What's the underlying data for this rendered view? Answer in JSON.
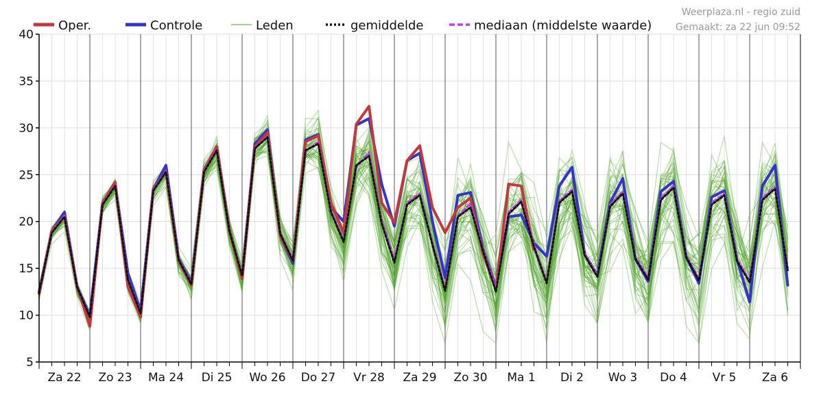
{
  "credit": {
    "line1": "Weerplaza.nl - regio zuid",
    "line2": "Gemaakt: za 22 jun 09:52"
  },
  "legend": [
    {
      "key": "oper",
      "label": "Oper.",
      "color": "#c0393b",
      "style": "solid-thick"
    },
    {
      "key": "controle",
      "label": "Controle",
      "color": "#3434c8",
      "style": "solid-thick"
    },
    {
      "key": "leden",
      "label": "Leden",
      "color": "#5aa832",
      "style": "thin"
    },
    {
      "key": "gemiddelde",
      "label": "gemiddelde",
      "color": "#111111",
      "style": "dotted"
    },
    {
      "key": "mediaan",
      "label": "mediaan (middelste waarde)",
      "color": "#c040e0",
      "style": "dashed"
    }
  ],
  "chart_data": {
    "type": "line",
    "title": "",
    "xlabel": "",
    "ylabel": "",
    "ylim": [
      5,
      40
    ],
    "yticks": [
      5,
      10,
      15,
      20,
      25,
      30,
      35,
      40
    ],
    "grid": true,
    "legend_position": "top",
    "days": [
      "Za 22",
      "Zo 23",
      "Ma 24",
      "Di 25",
      "Wo 26",
      "Do 27",
      "Vr 28",
      "Za 29",
      "Zo 30",
      "Ma 1",
      "Di 2",
      "Wo 3",
      "Do 4",
      "Vr 5",
      "Za 6"
    ],
    "samples_per_day": 4,
    "series": [
      {
        "name": "Oper.",
        "values": [
          12.3,
          19.0,
          20.6,
          13.0,
          8.8,
          22.0,
          24.2,
          13.0,
          9.8,
          23.5,
          25.3,
          15.8,
          13.2,
          25.5,
          28.0,
          19.0,
          13.9,
          28.0,
          29.5,
          18.5,
          15.8,
          28.5,
          29.2,
          22.0,
          18.8,
          30.4,
          32.3,
          22.0,
          19.9,
          26.5,
          28.1,
          21.5,
          18.8,
          21.5,
          22.5,
          16.5,
          12.8,
          24.0,
          23.8,
          17.0
        ]
      },
      {
        "name": "Controle",
        "values": [
          12.5,
          19.0,
          21.0,
          13.0,
          10.0,
          22.0,
          24.0,
          14.5,
          10.5,
          23.5,
          26.0,
          16.0,
          13.5,
          25.5,
          28.0,
          19.0,
          14.0,
          28.3,
          29.8,
          18.5,
          15.5,
          28.7,
          29.3,
          21.5,
          20.0,
          30.3,
          31.0,
          24.0,
          19.5,
          26.5,
          27.3,
          20.0,
          14.0,
          22.8,
          23.1,
          17.0,
          13.0,
          20.5,
          20.7,
          17.7,
          16.3,
          23.8,
          25.8,
          16.5,
          14.3,
          22.0,
          24.6,
          16.0,
          13.6,
          23.2,
          24.3,
          16.2,
          13.4,
          22.6,
          23.3,
          15.9,
          11.4,
          23.8,
          26.0,
          13.2
        ]
      },
      {
        "name": "gemiddelde",
        "values": [
          12.4,
          18.8,
          20.5,
          13.0,
          9.8,
          21.8,
          23.8,
          13.8,
          10.2,
          23.3,
          25.3,
          15.9,
          13.3,
          25.3,
          27.6,
          19.0,
          14.2,
          27.8,
          29.0,
          18.7,
          15.8,
          27.6,
          28.3,
          21.0,
          17.8,
          26.0,
          27.0,
          19.8,
          15.6,
          21.8,
          22.8,
          17.5,
          12.6,
          20.5,
          21.5,
          16.8,
          12.5,
          20.8,
          22.1,
          17.3,
          13.4,
          22.0,
          23.2,
          16.4,
          14.1,
          21.6,
          23.0,
          16.0,
          13.8,
          22.3,
          23.6,
          16.2,
          13.7,
          21.8,
          22.8,
          15.8,
          13.5,
          22.3,
          23.5,
          14.8
        ]
      },
      {
        "name": "mediaan (middelste waarde)",
        "values": [
          12.4,
          18.9,
          20.6,
          13.0,
          9.9,
          21.9,
          23.9,
          13.9,
          10.3,
          23.4,
          25.4,
          16.0,
          13.4,
          25.4,
          27.7,
          19.1,
          14.3,
          27.9,
          29.1,
          18.8,
          15.9,
          27.5,
          28.5,
          21.2,
          18.0,
          25.8,
          27.4,
          20.2,
          15.9,
          22.0,
          23.0,
          17.7,
          12.9,
          20.6,
          21.9,
          17.0,
          12.8,
          21.0,
          22.3,
          17.5,
          13.6,
          22.2,
          23.4,
          16.6,
          14.3,
          21.8,
          23.2,
          16.2,
          14.0,
          22.5,
          23.8,
          16.4,
          13.9,
          22.0,
          23.0,
          16.0,
          13.7,
          22.5,
          23.7,
          15.0
        ]
      },
      {
        "name": "Leden",
        "members": 50,
        "spread": [
          0.6,
          0.6,
          0.7,
          0.6,
          0.6,
          0.7,
          0.7,
          0.7,
          0.8,
          0.8,
          0.9,
          0.9,
          1.0,
          1.0,
          1.1,
          1.1,
          1.2,
          1.3,
          1.4,
          1.5,
          1.6,
          1.8,
          2.0,
          2.2,
          2.3,
          2.5,
          2.6,
          2.7,
          2.8,
          2.9,
          3.0,
          3.1,
          3.2,
          3.3,
          3.4,
          3.4,
          3.5,
          3.5,
          3.6,
          3.6,
          3.6,
          3.7,
          3.7,
          3.7,
          3.7,
          3.8,
          3.8,
          3.8,
          3.8,
          3.8,
          3.9,
          3.9,
          3.9,
          3.9,
          3.9,
          3.9,
          4.0,
          4.0,
          4.0,
          4.0
        ]
      }
    ]
  }
}
